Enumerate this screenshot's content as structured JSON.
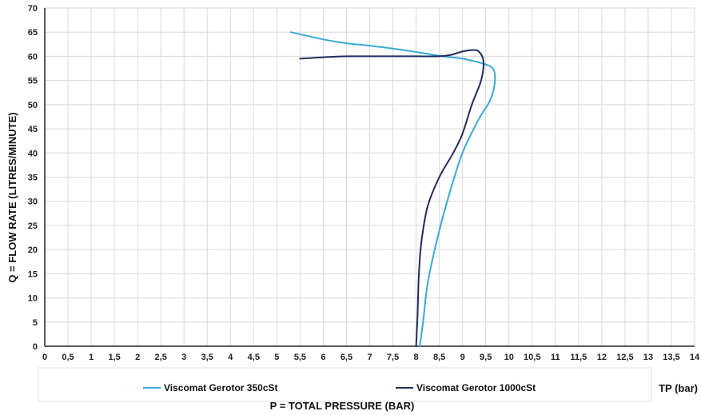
{
  "chart_data": {
    "type": "line",
    "xlabel": "P = TOTAL PRESSURE  (BAR)",
    "ylabel": "Q = FLOW RATE (LITRES/MINUTE)",
    "unit_label": "TP (bar)",
    "xlim": [
      0,
      14
    ],
    "ylim": [
      0,
      70
    ],
    "xticks": [
      "0",
      "0,5",
      "1",
      "1,5",
      "2",
      "2,5",
      "3",
      "3,5",
      "4",
      "4,5",
      "5",
      "5,5",
      "6",
      "6,5",
      "7",
      "7,5",
      "8",
      "8,5",
      "9",
      "9,5",
      "10",
      "10,5",
      "11",
      "11,5",
      "12",
      "12,5",
      "13",
      "13,5",
      "14"
    ],
    "yticks": [
      "0",
      "5",
      "10",
      "15",
      "20",
      "25",
      "30",
      "35",
      "40",
      "45",
      "50",
      "55",
      "60",
      "65",
      "70"
    ],
    "grid": true,
    "legend_position": "bottom",
    "series": [
      {
        "name": "Viscomat Gerotor 350cSt",
        "color": "#3aa8d8",
        "x": [
          5.3,
          6.0,
          6.5,
          7.0,
          7.5,
          8.0,
          8.5,
          9.0,
          9.4,
          9.65,
          9.7,
          9.6,
          9.35,
          9.0,
          8.7,
          8.45,
          8.25,
          8.15,
          8.08
        ],
        "y": [
          65,
          63.5,
          62.7,
          62.2,
          61.6,
          60.9,
          60.1,
          59.5,
          58.6,
          57.5,
          55,
          51,
          47,
          40,
          31,
          22,
          13,
          5,
          0
        ]
      },
      {
        "name": "Viscomat Gerotor 1000cSt",
        "color": "#1f2d5c",
        "x": [
          5.5,
          6.0,
          6.5,
          7.0,
          7.5,
          8.0,
          8.5,
          8.75,
          9.0,
          9.2,
          9.35,
          9.45,
          9.4,
          9.2,
          9.0,
          8.8,
          8.5,
          8.25,
          8.12,
          8.06,
          8.03,
          8.0
        ],
        "y": [
          59.5,
          59.8,
          60.0,
          60.0,
          60.0,
          60.0,
          60.0,
          60.3,
          61.0,
          61.3,
          61.0,
          59.0,
          55.0,
          50.0,
          44.0,
          40.0,
          35.0,
          29.0,
          22.0,
          15.0,
          6.0,
          0
        ]
      }
    ]
  }
}
